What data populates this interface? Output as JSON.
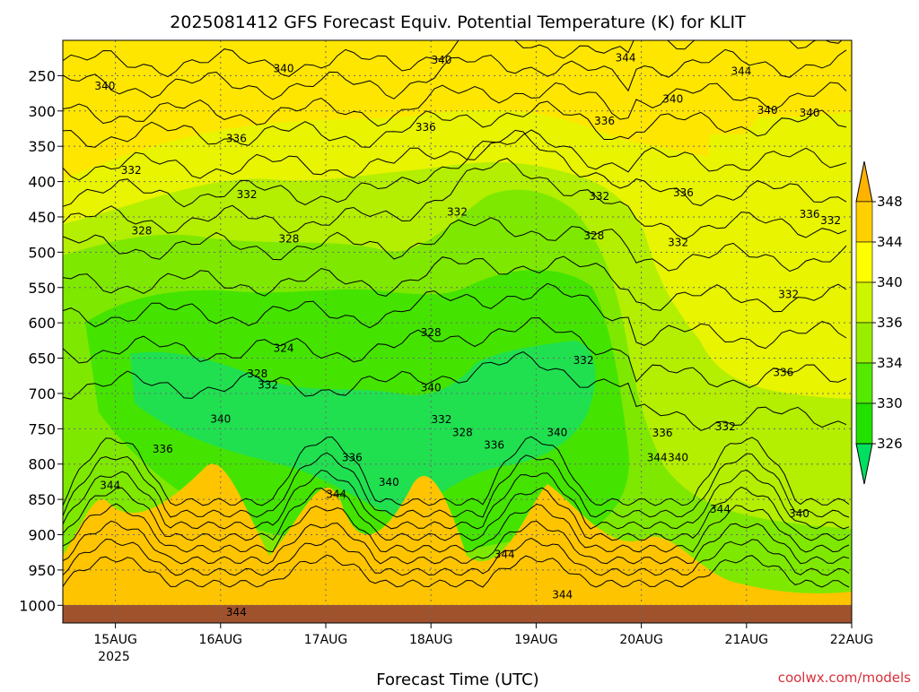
{
  "chart_data": {
    "type": "heatmap",
    "title": "2025081412 GFS Forecast Equiv. Potential Temperature (K) for KLIT",
    "xlabel": "Forecast Time (UTC)",
    "ylabel": "",
    "x_ticks": [
      "15AUG",
      "16AUG",
      "17AUG",
      "18AUG",
      "19AUG",
      "20AUG",
      "21AUG",
      "22AUG"
    ],
    "x_year": "2025",
    "x_range_days": [
      14.5,
      22.0
    ],
    "y_ticks": [
      250,
      300,
      350,
      400,
      450,
      500,
      550,
      600,
      650,
      700,
      750,
      800,
      850,
      900,
      950,
      1000
    ],
    "y_range_hpa": [
      200,
      1025
    ],
    "grid": true,
    "colorbar": {
      "levels": [
        326,
        330,
        334,
        336,
        340,
        344,
        348
      ],
      "labels": [
        "348",
        "344",
        "340",
        "336",
        "334",
        "330",
        "326"
      ],
      "colors": [
        "#00e060",
        "#22e000",
        "#55e800",
        "#99ee00",
        "#ccf500",
        "#ffff00",
        "#ffd000",
        "#ffb300"
      ]
    },
    "contour_labels": [
      {
        "text": "340",
        "t": 14.9,
        "p": 265
      },
      {
        "text": "340",
        "t": 16.6,
        "p": 240
      },
      {
        "text": "340",
        "t": 18.1,
        "p": 228
      },
      {
        "text": "344",
        "t": 19.85,
        "p": 225
      },
      {
        "text": "344",
        "t": 20.95,
        "p": 244
      },
      {
        "text": "340",
        "t": 20.3,
        "p": 283
      },
      {
        "text": "340",
        "t": 21.2,
        "p": 299
      },
      {
        "text": "340",
        "t": 21.6,
        "p": 303
      },
      {
        "text": "336",
        "t": 17.95,
        "p": 323
      },
      {
        "text": "336",
        "t": 19.65,
        "p": 314
      },
      {
        "text": "336",
        "t": 16.15,
        "p": 339
      },
      {
        "text": "332",
        "t": 15.15,
        "p": 384
      },
      {
        "text": "332",
        "t": 16.25,
        "p": 418
      },
      {
        "text": "332",
        "t": 18.25,
        "p": 443
      },
      {
        "text": "332",
        "t": 19.6,
        "p": 421
      },
      {
        "text": "336",
        "t": 20.4,
        "p": 416
      },
      {
        "text": "336",
        "t": 21.6,
        "p": 446
      },
      {
        "text": "332",
        "t": 21.8,
        "p": 455
      },
      {
        "text": "332",
        "t": 20.35,
        "p": 486
      },
      {
        "text": "332",
        "t": 21.4,
        "p": 560
      },
      {
        "text": "328",
        "t": 15.25,
        "p": 470
      },
      {
        "text": "328",
        "t": 16.65,
        "p": 481
      },
      {
        "text": "328",
        "t": 19.55,
        "p": 477
      },
      {
        "text": "328",
        "t": 18.0,
        "p": 614
      },
      {
        "text": "324",
        "t": 16.6,
        "p": 636
      },
      {
        "text": "328",
        "t": 16.35,
        "p": 672
      },
      {
        "text": "332",
        "t": 16.45,
        "p": 688
      },
      {
        "text": "340",
        "t": 16.0,
        "p": 736
      },
      {
        "text": "340",
        "t": 18.0,
        "p": 692
      },
      {
        "text": "332",
        "t": 18.1,
        "p": 737
      },
      {
        "text": "328",
        "t": 18.3,
        "p": 755
      },
      {
        "text": "336",
        "t": 18.6,
        "p": 773
      },
      {
        "text": "332",
        "t": 19.45,
        "p": 653
      },
      {
        "text": "340",
        "t": 19.2,
        "p": 755
      },
      {
        "text": "336",
        "t": 20.2,
        "p": 756
      },
      {
        "text": "332",
        "t": 20.8,
        "p": 747
      },
      {
        "text": "336",
        "t": 21.35,
        "p": 670
      },
      {
        "text": "336",
        "t": 15.45,
        "p": 779
      },
      {
        "text": "336",
        "t": 17.25,
        "p": 791
      },
      {
        "text": "340",
        "t": 17.6,
        "p": 826
      },
      {
        "text": "344",
        "t": 14.95,
        "p": 830
      },
      {
        "text": "344",
        "t": 17.1,
        "p": 843
      },
      {
        "text": "344",
        "t": 20.15,
        "p": 791
      },
      {
        "text": "340",
        "t": 20.35,
        "p": 791
      },
      {
        "text": "344",
        "t": 20.75,
        "p": 864
      },
      {
        "text": "340",
        "t": 21.5,
        "p": 870
      },
      {
        "text": "344",
        "t": 18.7,
        "p": 928
      },
      {
        "text": "344",
        "t": 19.25,
        "p": 985
      },
      {
        "text": "344",
        "t": 16.15,
        "p": 1010
      }
    ]
  },
  "footer": {
    "credit": "coolwx.com/models"
  }
}
